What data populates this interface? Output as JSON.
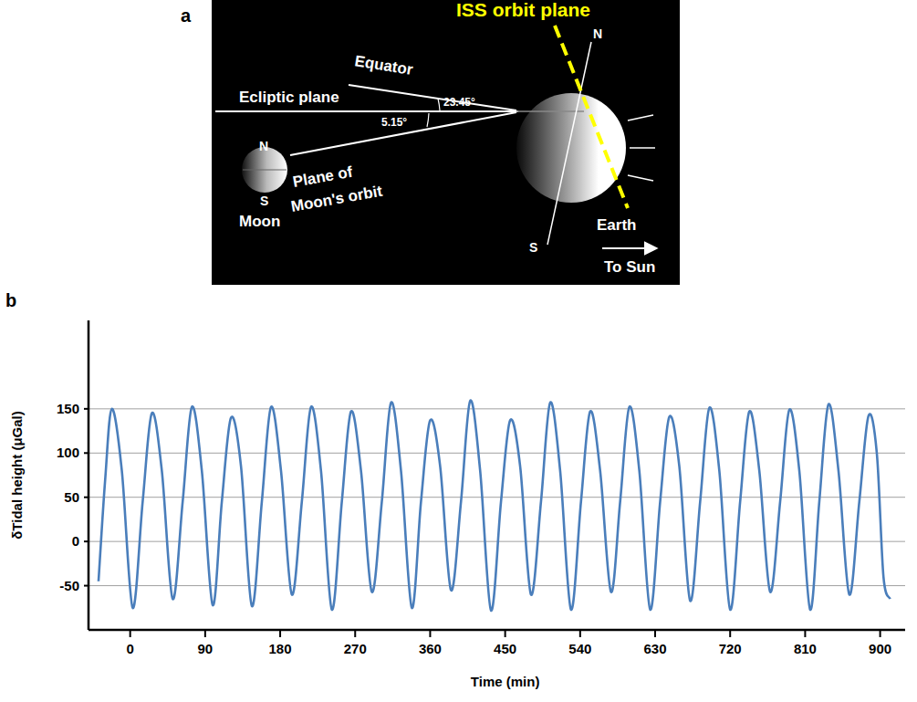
{
  "figure": {
    "panel_labels": [
      "a",
      "b"
    ]
  },
  "diagram": {
    "title": "ISS orbit plane",
    "equator": "Equator",
    "ecliptic": "Ecliptic plane",
    "angle_equator": "23.45°",
    "angle_moon": "5.15°",
    "moon_orbit_lines": [
      "Plane of",
      "Moon's orbit"
    ],
    "moon": {
      "label": "Moon",
      "north": "N",
      "south": "S"
    },
    "earth": {
      "label": "Earth",
      "north": "N",
      "south": "S"
    },
    "sun": "To Sun"
  },
  "chart_data": {
    "type": "line",
    "x_label": "Time (min)",
    "y_label": "δTidal height (μGal)",
    "color": "#4a7ebb",
    "x": [
      -38,
      -30,
      -22,
      -10,
      3,
      15,
      26,
      38,
      51,
      63,
      74,
      86,
      99,
      110,
      121,
      133,
      146,
      158,
      169,
      181,
      194,
      206,
      217,
      229,
      242,
      254,
      265,
      277,
      290,
      302,
      313,
      325,
      338,
      349,
      360,
      372,
      385,
      397,
      408,
      420,
      433,
      445,
      456,
      468,
      481,
      493,
      504,
      516,
      529,
      541,
      552,
      564,
      577,
      588,
      599,
      611,
      624,
      636,
      647,
      659,
      672,
      684,
      695,
      707,
      720,
      732,
      743,
      755,
      768,
      780,
      791,
      803,
      816,
      827,
      838,
      850,
      863,
      875,
      886,
      896,
      904,
      912
    ],
    "values": [
      -45,
      70,
      150,
      80,
      -75,
      45,
      145,
      80,
      -65,
      45,
      152,
      80,
      -72,
      45,
      140,
      85,
      -73,
      45,
      152,
      80,
      -60,
      45,
      152,
      80,
      -77,
      45,
      147,
      80,
      -57,
      45,
      157,
      80,
      -75,
      45,
      137,
      85,
      -55,
      45,
      159,
      80,
      -78,
      45,
      137,
      85,
      -60,
      45,
      157,
      80,
      -77,
      45,
      147,
      80,
      -57,
      45,
      152,
      80,
      -77,
      45,
      141,
      85,
      -67,
      45,
      151,
      80,
      -77,
      45,
      147,
      80,
      -57,
      45,
      149,
      80,
      -77,
      45,
      155,
      80,
      -60,
      45,
      142,
      100,
      -40,
      -65
    ],
    "xlim": [
      -50,
      930
    ],
    "xticks": [
      0,
      90,
      180,
      270,
      360,
      450,
      540,
      630,
      720,
      810,
      900
    ],
    "ylim": [
      -100,
      250
    ],
    "yticks": [
      -50,
      0,
      50,
      100,
      150
    ],
    "grid": true
  }
}
